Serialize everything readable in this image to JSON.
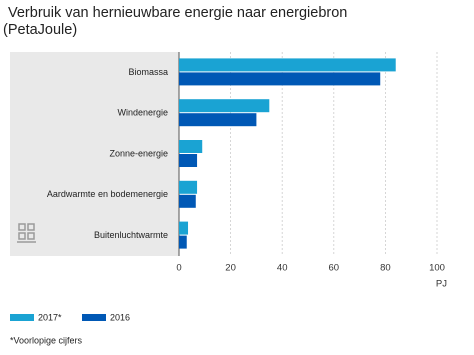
{
  "chart_data": {
    "type": "hbar",
    "title": "Verbruik van hernieuwbare energie naar energiebron",
    "subtitle": "(PetaJoule)",
    "categories": [
      "Biomassa",
      "Windenergie",
      "Zonne-energie",
      "Aardwarmte en bodemenergie",
      "Buitenluchtwarmte"
    ],
    "series": [
      {
        "name": "2017*",
        "color": "#1aa3d3",
        "values": [
          84,
          35,
          9,
          7,
          3.5
        ]
      },
      {
        "name": "2016",
        "color": "#0058b5",
        "values": [
          78,
          30,
          7,
          6.5,
          3
        ]
      }
    ],
    "xlim": [
      0,
      100
    ],
    "xticks": [
      0,
      20,
      40,
      60,
      80,
      100
    ],
    "xlabel": "PJ",
    "grid": true,
    "footnote": "*Voorlopige cijfers"
  }
}
